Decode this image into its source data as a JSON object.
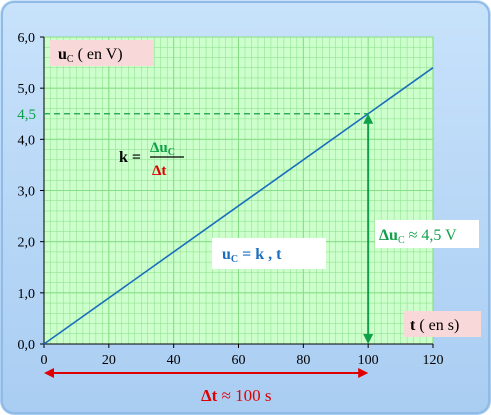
{
  "chart_data": {
    "type": "line",
    "xlim": [
      0,
      120
    ],
    "ylim": [
      0,
      6
    ],
    "x_major_step": 20,
    "x_minor_step": 2,
    "y_major_step": 1,
    "y_minor_step": 0.2,
    "x_tick_labels": [
      "0",
      "20",
      "40",
      "60",
      "80",
      "100",
      "120"
    ],
    "y_tick_labels": [
      "0,0",
      "1,0",
      "2,0",
      "3,0",
      "4,0",
      "5,0",
      "6,0"
    ],
    "series": [
      {
        "x": [
          0,
          120
        ],
        "y": [
          0,
          5.4
        ]
      }
    ],
    "grid": true,
    "colors": {
      "plot_bg": "#ccffcc",
      "grid": "#88dd88",
      "line": "#1a6ebd",
      "green": "#11a04a",
      "red": "#e00000",
      "label_box": "#f8d8d8",
      "frame_bg": "#bcd8f8"
    }
  },
  "labels": {
    "ylabel_main": "u",
    "ylabel_sub": "C",
    "ylabel_unit": " ( en V)",
    "xlabel_main": "t",
    "xlabel_unit": " ( en s)",
    "k_eq_lhs": "k =",
    "k_num_delta": "Δu",
    "k_num_sub": "C",
    "k_den": "Δt",
    "uc_eq_main": "u",
    "uc_eq_sub": "C",
    "uc_eq_rest": " = k , t",
    "delta_u_main": "Δu",
    "delta_u_sub": "C",
    "delta_u_rest": " ≈ 4,5 V",
    "y_marker_label": "4,5",
    "delta_t": "Δt",
    "delta_t_rest": " ≈ 100 s"
  },
  "annotations": {
    "y_marker_value": 4.5,
    "x_marker_value": 100
  }
}
